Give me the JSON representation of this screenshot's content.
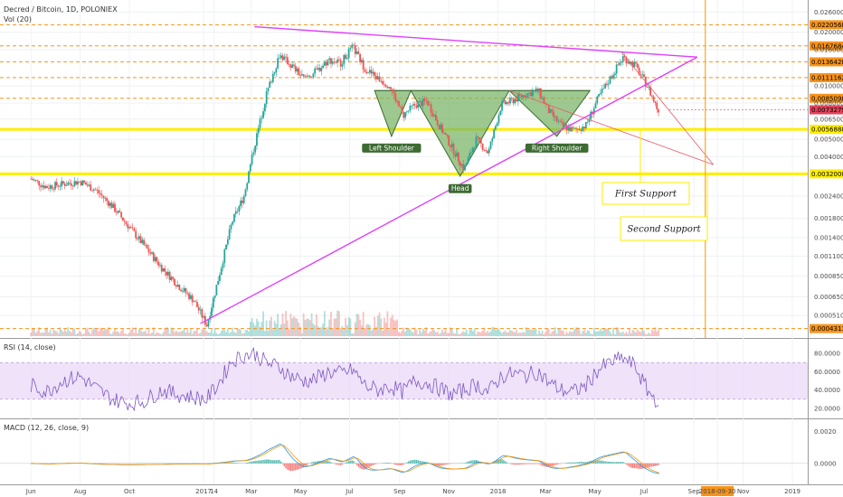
{
  "chart_data": {
    "type": "candlestick",
    "title": "Decred / Bitcoin, 1D, POLONIEX",
    "volume_label": "Vol (20)",
    "price_axis": {
      "scale": "log",
      "range": [
        0.0004,
        0.029
      ],
      "ticks": [
        "0.02600000",
        "0.02000000",
        "0.01600000",
        "0.01000000",
        "0.00800000",
        "0.00650000",
        "0.00500000",
        "0.00400000",
        "0.00240000",
        "0.00180000",
        "0.00140000",
        "0.00110000",
        "0.00085000",
        "0.00065000",
        "0.00051000"
      ],
      "tick_values": [
        0.026,
        0.02,
        0.016,
        0.01,
        0.008,
        0.0065,
        0.005,
        0.004,
        0.0024,
        0.0018,
        0.0014,
        0.0011,
        0.00085,
        0.00065,
        0.00051
      ],
      "tagged_levels": [
        {
          "label": "0.02205687",
          "value": 0.02205687,
          "color": "#f7931a"
        },
        {
          "label": "0.01676846",
          "value": 0.01676846,
          "color": "#f7931a"
        },
        {
          "label": "0.01364288",
          "value": 0.01364288,
          "color": "#f7931a"
        },
        {
          "label": "0.01111620",
          "value": 0.0111162,
          "color": "#f7931a"
        },
        {
          "label": "0.00850986",
          "value": 0.00850986,
          "color": "#f7931a"
        },
        {
          "label": "0.00732795",
          "value": 0.00732795,
          "color": "#e0435a"
        },
        {
          "label": "0.00568887",
          "value": 0.00568887,
          "color": "#ffee00"
        },
        {
          "label": "0.00320000",
          "value": 0.0032,
          "color": "#ffee00"
        },
        {
          "label": "0.00043111",
          "value": 0.00043111,
          "color": "#f7931a"
        }
      ]
    },
    "time_axis": {
      "labels": [
        "Jun",
        "Aug",
        "Oct",
        "2017",
        "14",
        "Mar",
        "May",
        "Jul",
        "Sep",
        "Nov",
        "2018",
        "Mar",
        "May",
        "Jul",
        "Sep",
        "2018-09-30",
        "Nov",
        "2019"
      ],
      "highlighted_label": "2018-09-30"
    },
    "close_series": {
      "dates": [
        "2016-06-01",
        "2016-06-20",
        "2016-07-10",
        "2016-08-01",
        "2016-08-20",
        "2016-09-10",
        "2016-10-01",
        "2016-10-20",
        "2016-11-10",
        "2016-12-01",
        "2016-12-20",
        "2017-01-05",
        "2017-01-20",
        "2017-02-05",
        "2017-02-20",
        "2017-03-05",
        "2017-03-20",
        "2017-04-05",
        "2017-04-20",
        "2017-05-05",
        "2017-05-20",
        "2017-06-05",
        "2017-06-20",
        "2017-07-05",
        "2017-07-20",
        "2017-08-05",
        "2017-08-20",
        "2017-09-05",
        "2017-09-20",
        "2017-10-05",
        "2017-10-20",
        "2017-11-05",
        "2017-11-20",
        "2017-12-05",
        "2017-12-20",
        "2018-01-05",
        "2018-01-20",
        "2018-02-05",
        "2018-02-20",
        "2018-03-05",
        "2018-03-20",
        "2018-04-05",
        "2018-04-20",
        "2018-05-05",
        "2018-05-20",
        "2018-06-05",
        "2018-06-20",
        "2018-07-05",
        "2018-07-20"
      ],
      "values": [
        0.003,
        0.0027,
        0.0028,
        0.0029,
        0.0026,
        0.0021,
        0.0016,
        0.00125,
        0.00095,
        0.00075,
        0.00062,
        0.00045,
        0.00085,
        0.0017,
        0.0024,
        0.0046,
        0.009,
        0.015,
        0.013,
        0.011,
        0.012,
        0.014,
        0.0135,
        0.0165,
        0.0125,
        0.011,
        0.01,
        0.0068,
        0.0078,
        0.0082,
        0.006,
        0.0045,
        0.0034,
        0.005,
        0.0042,
        0.0078,
        0.0083,
        0.009,
        0.0094,
        0.0072,
        0.006,
        0.0056,
        0.006,
        0.0085,
        0.011,
        0.0145,
        0.013,
        0.01,
        0.007
      ]
    },
    "rsi": {
      "label": "RSI (14, close)",
      "ticks": [
        "80.0000",
        "60.0000",
        "40.0000",
        "20.0000"
      ],
      "tick_values": [
        80,
        60,
        40,
        20
      ],
      "band": [
        30,
        70
      ],
      "values": [
        45,
        38,
        50,
        55,
        42,
        30,
        25,
        28,
        40,
        35,
        32,
        30,
        48,
        72,
        78,
        80,
        70,
        65,
        55,
        50,
        52,
        60,
        58,
        62,
        45,
        40,
        44,
        38,
        50,
        48,
        42,
        35,
        40,
        46,
        38,
        55,
        58,
        56,
        60,
        48,
        40,
        38,
        45,
        62,
        70,
        75,
        66,
        40,
        25
      ]
    },
    "macd": {
      "label": "MACD (12, 26, close, 9)",
      "ticks": [
        "0.0020",
        "0.0000"
      ],
      "tick_values": [
        0.002,
        0.0
      ]
    },
    "annotations": {
      "pattern_labels": [
        "Left Shoulder",
        "Head",
        "Right Shoulder"
      ],
      "support_labels": [
        "First Support",
        "Second Support"
      ]
    },
    "colors": {
      "up_candle": "#26a69a",
      "down_candle": "#ef5350",
      "triangle_lines": "#e040fb",
      "pattern_fill": "#7cb66a",
      "support_line": "#ffee00",
      "resistance_dashes": "#f7931a",
      "rsi_line": "#7e57c2",
      "macd_line": "#2196f3",
      "signal_line": "#ff9800",
      "projection_line": "#e85a6b",
      "vertical_marker": "#f7a823"
    }
  }
}
